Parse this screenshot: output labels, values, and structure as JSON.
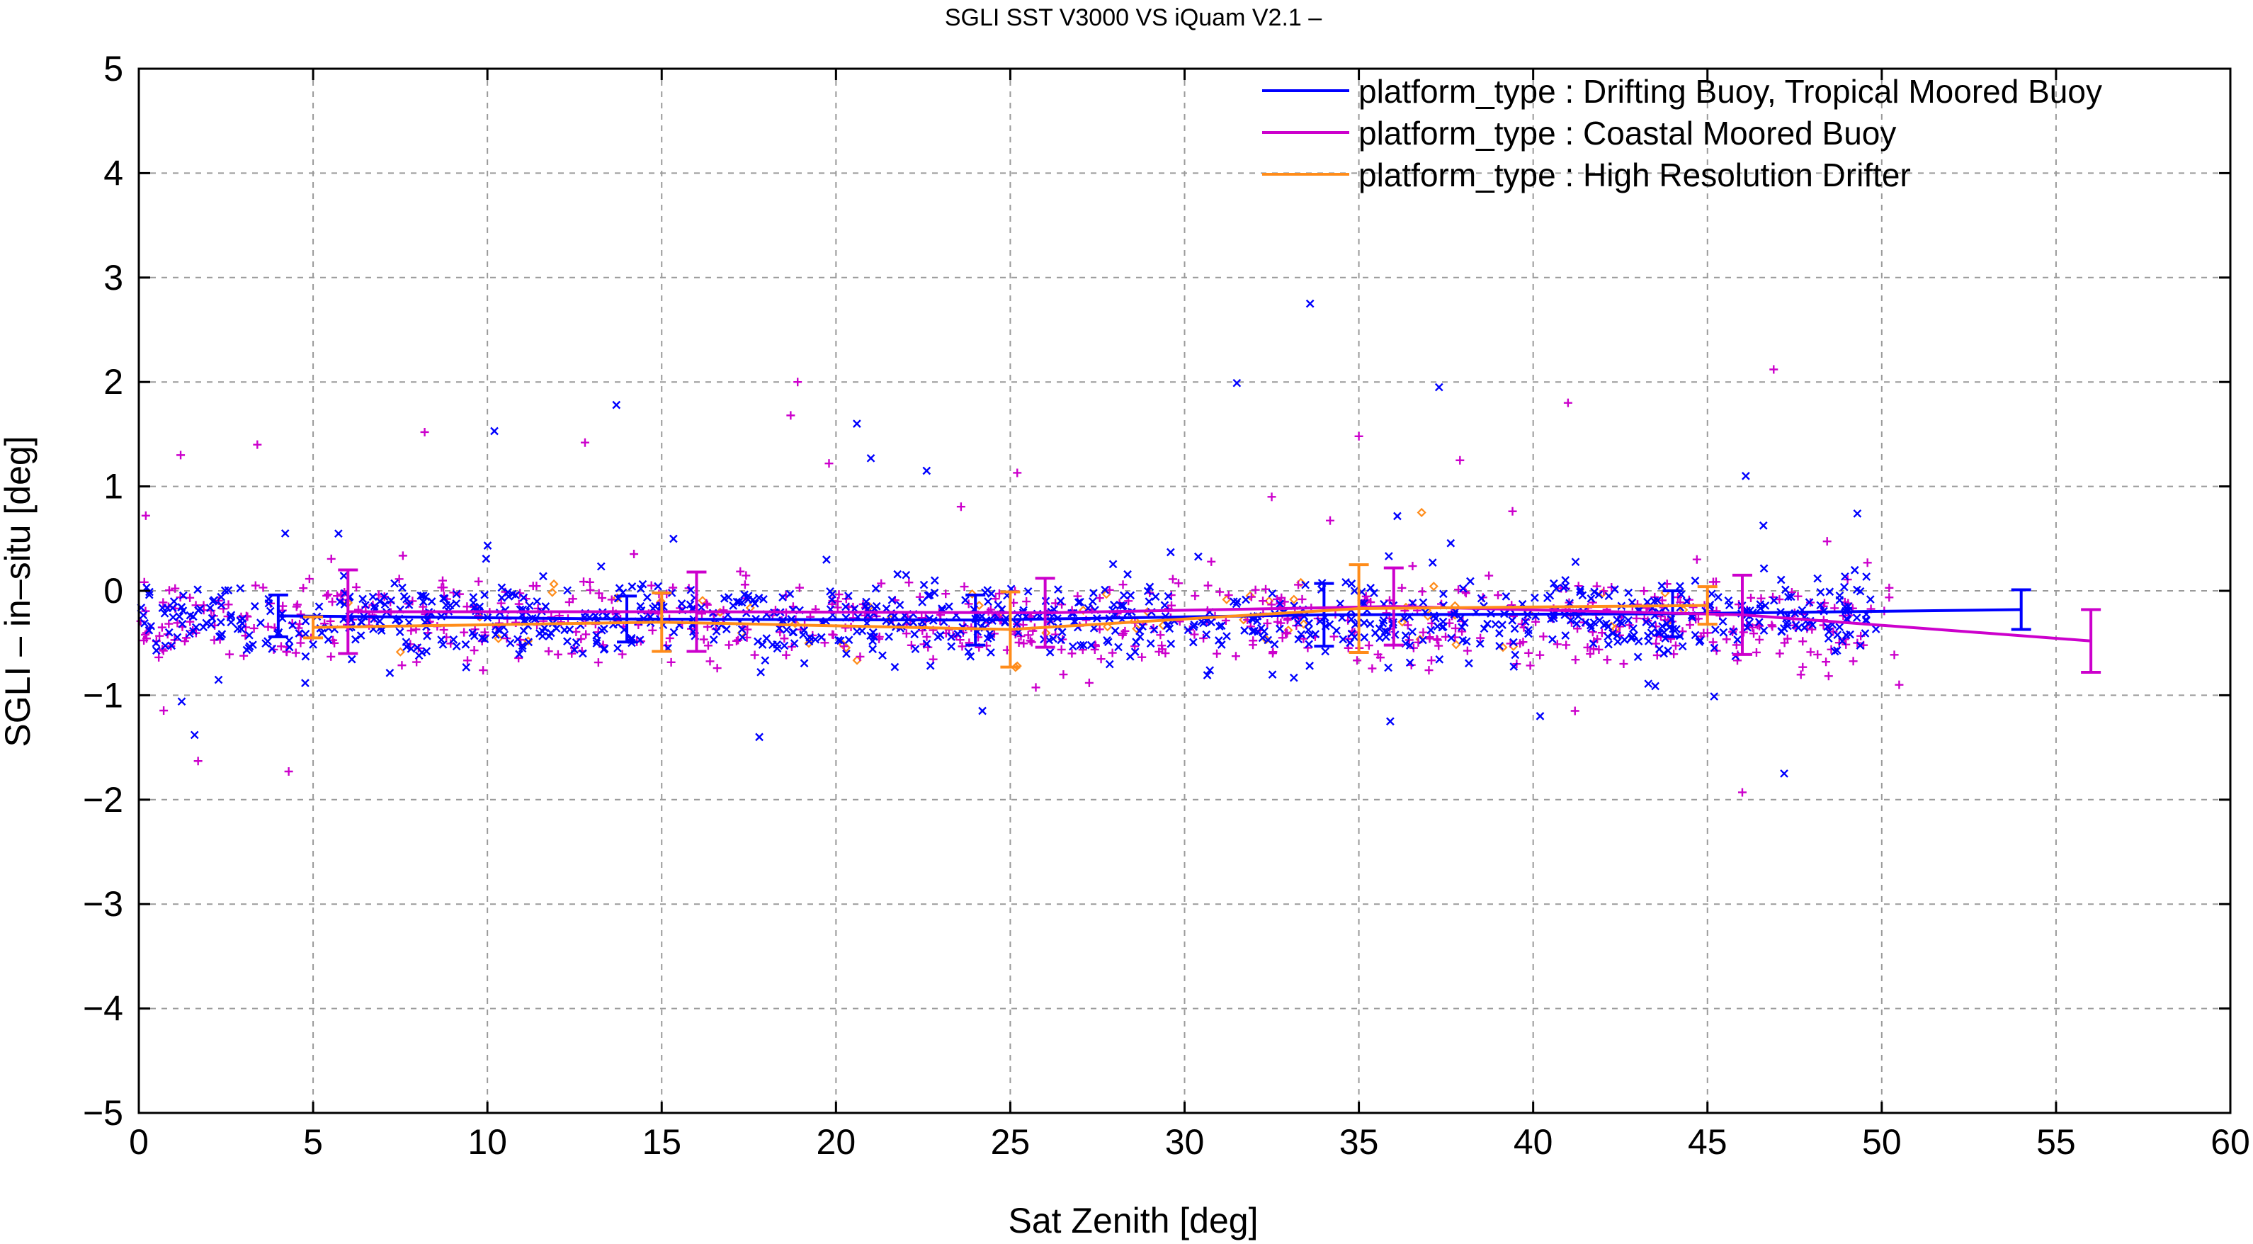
{
  "chart_data": {
    "type": "scatter",
    "title": "SGLI SST V3000 VS iQuam V2.1  –",
    "xlabel": "Sat Zenith [deg]",
    "ylabel": "SGLI – in–situ [deg]",
    "xlim": [
      0,
      60
    ],
    "ylim": [
      -5,
      5
    ],
    "x_ticks": [
      0,
      5,
      10,
      15,
      20,
      25,
      30,
      35,
      40,
      45,
      50,
      55,
      60
    ],
    "y_ticks": [
      -5,
      -4,
      -3,
      -2,
      -1,
      0,
      1,
      2,
      3,
      4,
      5
    ],
    "x_tick_labels": [
      "0",
      "5",
      "10",
      "15",
      "20",
      "25",
      "30",
      "35",
      "40",
      "45",
      "50",
      "55",
      "60"
    ],
    "y_tick_labels": [
      "−5",
      "−4",
      "−3",
      "−2",
      "−1",
      "0",
      "1",
      "2",
      "3",
      "4",
      "5"
    ],
    "grid": true,
    "legend_position": "top-right",
    "series": [
      {
        "name": "platform_type : Drifting Buoy, Tropical Moored Buoy",
        "color": "#0000ff",
        "marker": "x",
        "scatter_center": -0.27,
        "scatter_spread": 0.18,
        "scatter_x_range": [
          0,
          50
        ],
        "outliers": [
          [
            1.6,
            -1.38
          ],
          [
            4.2,
            0.55
          ],
          [
            10.2,
            1.53
          ],
          [
            11.6,
            0.14
          ],
          [
            13.7,
            1.78
          ],
          [
            14.4,
            0.02
          ],
          [
            17.8,
            -1.4
          ],
          [
            20.6,
            1.6
          ],
          [
            21.0,
            1.27
          ],
          [
            22.6,
            1.15
          ],
          [
            24.2,
            -1.15
          ],
          [
            27.1,
            -0.52
          ],
          [
            31.5,
            1.99
          ],
          [
            33.6,
            2.75
          ],
          [
            35.9,
            -1.25
          ],
          [
            37.3,
            1.95
          ],
          [
            40.2,
            -1.2
          ],
          [
            46.1,
            1.1
          ],
          [
            47.2,
            -1.75
          ],
          [
            49.3,
            0.74
          ]
        ],
        "binned": [
          {
            "x": 4.0,
            "y": -0.24,
            "err": 0.2
          },
          {
            "x": 14.0,
            "y": -0.27,
            "err": 0.22
          },
          {
            "x": 24.0,
            "y": -0.28,
            "err": 0.24
          },
          {
            "x": 34.0,
            "y": -0.23,
            "err": 0.3
          },
          {
            "x": 44.0,
            "y": -0.22,
            "err": 0.22
          },
          {
            "x": 54.0,
            "y": -0.18,
            "err": 0.19
          }
        ]
      },
      {
        "name": "platform_type : Coastal Moored Buoy",
        "color": "#cc00cc",
        "marker": "+",
        "scatter_center": -0.3,
        "scatter_spread": 0.2,
        "scatter_x_range": [
          0,
          50.5
        ],
        "outliers": [
          [
            0.2,
            0.72
          ],
          [
            1.2,
            1.3
          ],
          [
            1.7,
            -1.63
          ],
          [
            3.4,
            1.4
          ],
          [
            4.3,
            -1.73
          ],
          [
            8.2,
            1.52
          ],
          [
            12.8,
            1.42
          ],
          [
            18.7,
            1.68
          ],
          [
            18.9,
            2.0
          ],
          [
            19.8,
            1.22
          ],
          [
            25.2,
            1.13
          ],
          [
            32.5,
            0.9
          ],
          [
            35.0,
            1.48
          ],
          [
            37.9,
            1.25
          ],
          [
            41.0,
            1.8
          ],
          [
            41.2,
            -1.15
          ],
          [
            46.0,
            -1.93
          ],
          [
            46.9,
            2.12
          ],
          [
            48.4,
            -0.68
          ],
          [
            50.5,
            -0.9
          ]
        ],
        "binned": [
          {
            "x": 6.0,
            "y": -0.2,
            "err": 0.4
          },
          {
            "x": 16.0,
            "y": -0.2,
            "err": 0.38
          },
          {
            "x": 26.0,
            "y": -0.21,
            "err": 0.33
          },
          {
            "x": 36.0,
            "y": -0.15,
            "err": 0.37
          },
          {
            "x": 46.0,
            "y": -0.23,
            "err": 0.38
          },
          {
            "x": 56.0,
            "y": -0.48,
            "err": 0.3
          }
        ]
      },
      {
        "name": "platform_type : High Resolution Drifter",
        "color": "#ff8c1a",
        "marker": "diamond",
        "scatter_center": -0.25,
        "scatter_spread": 0.16,
        "scatter_x_range": [
          5,
          45
        ],
        "outliers": [
          [
            36.8,
            0.75
          ],
          [
            25.2,
            -0.72
          ]
        ],
        "binned": [
          {
            "x": 5.0,
            "y": -0.35,
            "err": 0.1
          },
          {
            "x": 15.0,
            "y": -0.3,
            "err": 0.28
          },
          {
            "x": 25.0,
            "y": -0.37,
            "err": 0.36
          },
          {
            "x": 35.0,
            "y": -0.17,
            "err": 0.42
          },
          {
            "x": 45.0,
            "y": -0.14,
            "err": 0.18
          }
        ]
      }
    ]
  }
}
